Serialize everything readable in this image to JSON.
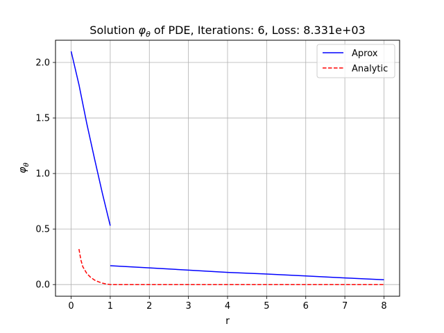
{
  "chart_data": {
    "type": "line",
    "title_prefix": "Solution ",
    "title_symbol": "φ",
    "title_subscript": "θ",
    "title_suffix": " of PDE, Iterations: 6, Loss: 8.331e+03",
    "xlabel": "r",
    "ylabel_symbol": "φ",
    "ylabel_subscript": "θ",
    "xlim": [
      -0.4,
      8.4
    ],
    "ylim": [
      -0.105,
      2.2
    ],
    "xticks": [
      0,
      1,
      2,
      3,
      4,
      5,
      6,
      7,
      8
    ],
    "xtick_labels": [
      "0",
      "1",
      "2",
      "3",
      "4",
      "5",
      "6",
      "7",
      "8"
    ],
    "yticks": [
      0.0,
      0.5,
      1.0,
      1.5,
      2.0
    ],
    "ytick_labels": [
      "0.0",
      "0.5",
      "1.0",
      "1.5",
      "2.0"
    ],
    "grid": true,
    "legend_position": "top-right",
    "series": [
      {
        "name": "Aprox",
        "color": "#0000ff",
        "style": "solid",
        "segments": [
          {
            "x": [
              0.0,
              0.2,
              0.4,
              0.6,
              0.8,
              1.0
            ],
            "y": [
              2.1,
              1.8,
              1.45,
              1.13,
              0.82,
              0.53
            ]
          },
          {
            "x": [
              1.0,
              2.0,
              3.0,
              4.0,
              5.0,
              6.0,
              7.0,
              8.0
            ],
            "y": [
              0.17,
              0.15,
              0.13,
              0.11,
              0.095,
              0.078,
              0.06,
              0.043
            ]
          }
        ]
      },
      {
        "name": "Analytic",
        "color": "#ff0000",
        "style": "dashed",
        "segments": [
          {
            "x": [
              0.2,
              0.25,
              0.3,
              0.4,
              0.5,
              0.6,
              0.7,
              0.8,
              0.9,
              1.0,
              2.0,
              3.0,
              4.0,
              5.0,
              6.0,
              7.0,
              8.0
            ],
            "y": [
              0.32,
              0.22,
              0.16,
              0.1,
              0.065,
              0.04,
              0.025,
              0.013,
              0.005,
              0.0,
              0.0,
              0.0,
              0.0,
              0.0,
              0.0,
              0.0,
              0.0
            ]
          }
        ]
      }
    ]
  }
}
